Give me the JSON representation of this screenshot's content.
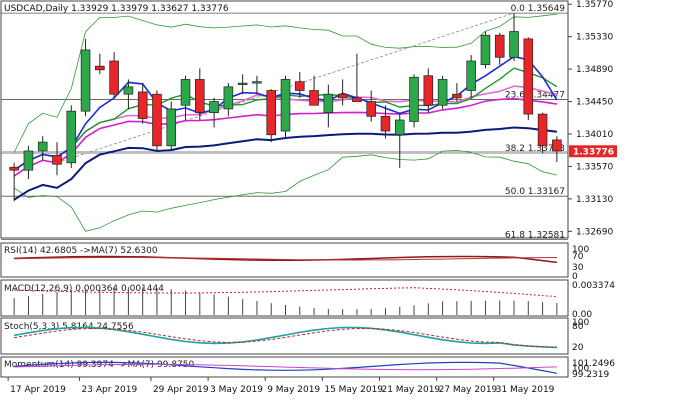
{
  "colors": {
    "bull": "#2aa84a",
    "bear": "#e8262a",
    "blue_ma": "#1d2dd6",
    "green_ma": "#1d9a2a",
    "pink_ma": "#e36ad8",
    "magenta_ma": "#d21fd0",
    "navy_ma": "#0c1a7a",
    "bands": "#2c9a35",
    "macd_hist": "#444444",
    "macd_signal": "#cc2222",
    "rsi_line": "#8b1a1a",
    "rsi_ma": "#b33",
    "stoch_k": "#1aa3a3",
    "stoch_d": "#cc2222",
    "mom_line": "#2040c0",
    "mom_ma": "#cc44cc",
    "price_tag_bg": "#e8262a"
  },
  "chart_data": {
    "type": "candlestick",
    "title": "USDCAD,Daily  1.33929 1.33979 1.33627 1.33776",
    "symbol": "USDCAD,Daily",
    "ohlc_header": [
      "1.33929",
      "1.33979",
      "1.33627",
      "1.33776"
    ],
    "current_price": "1.33776",
    "ylim": [
      1.326,
      1.358
    ],
    "y_ticks": [
      "1.35770",
      "1.35330",
      "1.34890",
      "1.34450",
      "1.34010",
      "1.33570",
      "1.33130",
      "1.32690"
    ],
    "x_labels": [
      "17 Apr 2019",
      "23 Apr 2019",
      "29 Apr 2019",
      "3 May 2019",
      "9 May 2019",
      "15 May 2019",
      "21 May 2019",
      "27 May 2019",
      "31 May 2019"
    ],
    "fib_levels": [
      {
        "label": "0.0 1.35649",
        "value": 1.35649
      },
      {
        "label": "23.6 1.34477",
        "value": 1.34477
      },
      {
        "label": "38.2 1.33753",
        "value": 1.33753
      },
      {
        "label": "50.0 1.33167",
        "value": 1.33167
      },
      {
        "label": "61.8 1.32581",
        "value": 1.32581
      }
    ],
    "candles": [
      [
        1.3356,
        1.3362,
        1.331,
        1.3352
      ],
      [
        1.3352,
        1.3385,
        1.334,
        1.3378
      ],
      [
        1.3378,
        1.3398,
        1.3365,
        1.339
      ],
      [
        1.3372,
        1.339,
        1.3345,
        1.336
      ],
      [
        1.3362,
        1.344,
        1.3355,
        1.3432
      ],
      [
        1.3432,
        1.353,
        1.3425,
        1.3515
      ],
      [
        1.3493,
        1.351,
        1.3482,
        1.3488
      ],
      [
        1.35,
        1.3512,
        1.345,
        1.3455
      ],
      [
        1.3455,
        1.3475,
        1.3435,
        1.3465
      ],
      [
        1.3458,
        1.347,
        1.3415,
        1.3422
      ],
      [
        1.3455,
        1.346,
        1.3378,
        1.3385
      ],
      [
        1.3385,
        1.3445,
        1.338,
        1.3435
      ],
      [
        1.344,
        1.348,
        1.342,
        1.3475
      ],
      [
        1.3475,
        1.349,
        1.342,
        1.343
      ],
      [
        1.343,
        1.345,
        1.341,
        1.3445
      ],
      [
        1.3435,
        1.347,
        1.3425,
        1.3465
      ],
      [
        1.3468,
        1.3482,
        1.3455,
        1.347
      ],
      [
        1.347,
        1.348,
        1.3455,
        1.3472
      ],
      [
        1.346,
        1.3462,
        1.339,
        1.34
      ],
      [
        1.3405,
        1.348,
        1.3395,
        1.3475
      ],
      [
        1.3472,
        1.3485,
        1.345,
        1.346
      ],
      [
        1.346,
        1.348,
        1.344,
        1.344
      ],
      [
        1.343,
        1.3468,
        1.341,
        1.3455
      ],
      [
        1.3455,
        1.3475,
        1.344,
        1.345
      ],
      [
        1.345,
        1.351,
        1.3445,
        1.3445
      ],
      [
        1.3445,
        1.346,
        1.3418,
        1.3425
      ],
      [
        1.3425,
        1.344,
        1.3395,
        1.3405
      ],
      [
        1.34,
        1.343,
        1.3355,
        1.342
      ],
      [
        1.3418,
        1.3482,
        1.341,
        1.3478
      ],
      [
        1.348,
        1.349,
        1.343,
        1.344
      ],
      [
        1.344,
        1.348,
        1.3435,
        1.3475
      ],
      [
        1.3455,
        1.347,
        1.3445,
        1.345
      ],
      [
        1.346,
        1.3508,
        1.345,
        1.35
      ],
      [
        1.3495,
        1.354,
        1.349,
        1.3535
      ],
      [
        1.3535,
        1.3538,
        1.3495,
        1.3505
      ],
      [
        1.3505,
        1.3565,
        1.35,
        1.354
      ],
      [
        1.353,
        1.3532,
        1.342,
        1.3428
      ],
      [
        1.3428,
        1.343,
        1.3375,
        1.3385
      ],
      [
        1.3393,
        1.3398,
        1.3363,
        1.3378
      ]
    ],
    "indicators": {
      "rsi": {
        "label": "RSI(14) 42.6805  ->MA(7) 52.6300",
        "ticks": [
          "100",
          "70",
          "30",
          "0"
        ]
      },
      "macd": {
        "label": "MACD(12,26,9) 0.000364 0.001444",
        "ticks": [
          "0.003374",
          "0.00"
        ]
      },
      "stoch": {
        "label": "Stoch(5,3,3) 5.8164 24.7556",
        "ticks": [
          "100",
          "80",
          "20"
        ]
      },
      "momentum": {
        "label": "Momentum(14) 99.3974  ->MA(7) 99.8750",
        "ticks": [
          "101.2496",
          "100",
          "99.2319"
        ]
      }
    }
  }
}
